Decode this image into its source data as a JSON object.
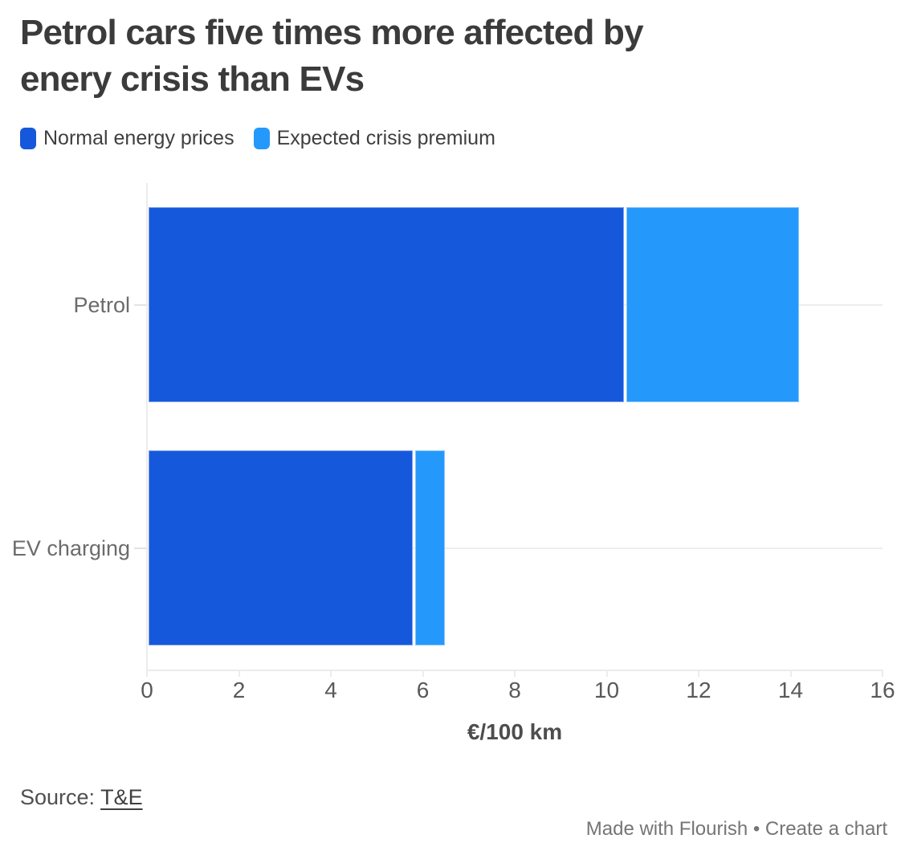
{
  "header": {
    "title": "Petrol cars five times more affected by enery crisis than EVs",
    "title_lines": [
      "Petrol cars five times more affected by",
      "enery crisis than EVs"
    ]
  },
  "chart_data": {
    "type": "bar",
    "orientation": "horizontal",
    "stacked": true,
    "categories": [
      "Petrol",
      "EV charging"
    ],
    "series": [
      {
        "name": "Normal energy prices",
        "color": "#1658dc",
        "values": [
          10.4,
          5.8
        ]
      },
      {
        "name": "Expected crisis premium",
        "color": "#2598fc",
        "values": [
          3.8,
          0.7
        ]
      }
    ],
    "totals": [
      14.2,
      6.5
    ],
    "xlabel": "€/100 km",
    "xlim": [
      0,
      16
    ],
    "xticks": [
      0,
      2,
      4,
      6,
      8,
      10,
      12,
      14,
      16
    ],
    "grid": "row-center-lines",
    "legend_position": "top-left"
  },
  "colors": {
    "normal_energy": "#1658dc",
    "crisis_premium": "#2598fc",
    "axis": "#ececec",
    "title_text": "#3b3b3b"
  },
  "footer": {
    "source_label": "Source: ",
    "source_link": "T&E",
    "credit_left": "Made with Flourish",
    "credit_separator": " • ",
    "credit_right": "Create a chart"
  }
}
